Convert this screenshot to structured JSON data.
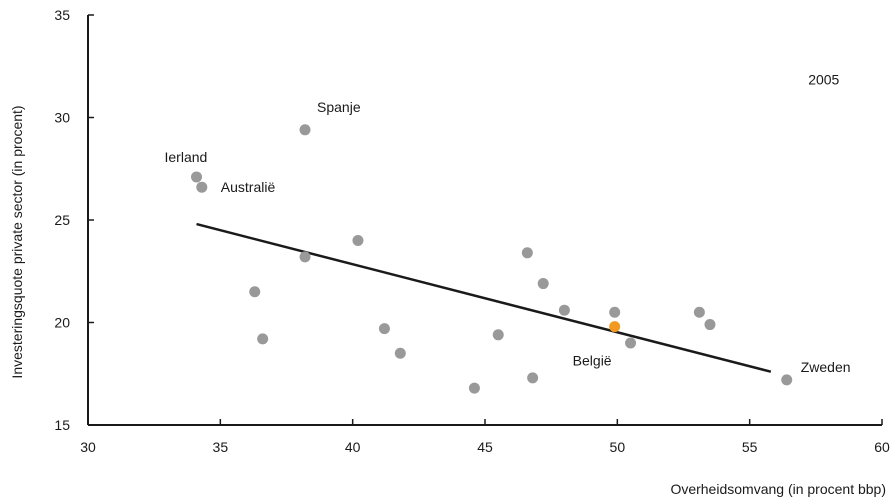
{
  "chart_data": {
    "type": "scatter",
    "title": "",
    "xlabel": "Overheidsomvang (in procent bbp)",
    "ylabel": "Investeringsquote private sector (in procent)",
    "xlim": [
      30,
      60
    ],
    "ylim": [
      15,
      35
    ],
    "xticks": [
      30,
      35,
      40,
      45,
      50,
      55,
      60
    ],
    "yticks": [
      15,
      20,
      25,
      30,
      35
    ],
    "grid": false,
    "points": [
      {
        "x": 34.1,
        "y": 27.1,
        "label": "Ierland"
      },
      {
        "x": 34.3,
        "y": 26.6,
        "label": "Australië"
      },
      {
        "x": 38.2,
        "y": 29.4,
        "label": "Spanje"
      },
      {
        "x": 36.3,
        "y": 21.5
      },
      {
        "x": 36.6,
        "y": 19.2
      },
      {
        "x": 38.2,
        "y": 23.2
      },
      {
        "x": 40.2,
        "y": 24.0
      },
      {
        "x": 41.2,
        "y": 19.7
      },
      {
        "x": 41.8,
        "y": 18.5
      },
      {
        "x": 44.6,
        "y": 16.8
      },
      {
        "x": 45.5,
        "y": 19.4
      },
      {
        "x": 46.6,
        "y": 23.4
      },
      {
        "x": 46.8,
        "y": 17.3
      },
      {
        "x": 47.2,
        "y": 21.9
      },
      {
        "x": 48.0,
        "y": 20.6
      },
      {
        "x": 49.9,
        "y": 20.5
      },
      {
        "x": 49.9,
        "y": 19.8,
        "label": "België",
        "highlight": true
      },
      {
        "x": 50.5,
        "y": 19.0
      },
      {
        "x": 53.1,
        "y": 20.5
      },
      {
        "x": 53.5,
        "y": 19.9
      },
      {
        "x": 56.4,
        "y": 17.2,
        "label": "Zweden"
      }
    ],
    "trendline": {
      "x1": 34.1,
      "y1": 24.8,
      "x2": 55.8,
      "y2": 17.6
    },
    "annotations": [
      {
        "text": "2005",
        "x": 57.8,
        "y": 31.6
      }
    ],
    "colors": {
      "point": "#999999",
      "highlight": "#f29a1f",
      "trend": "#1a1a1a",
      "axis": "#1a1a1a"
    }
  }
}
